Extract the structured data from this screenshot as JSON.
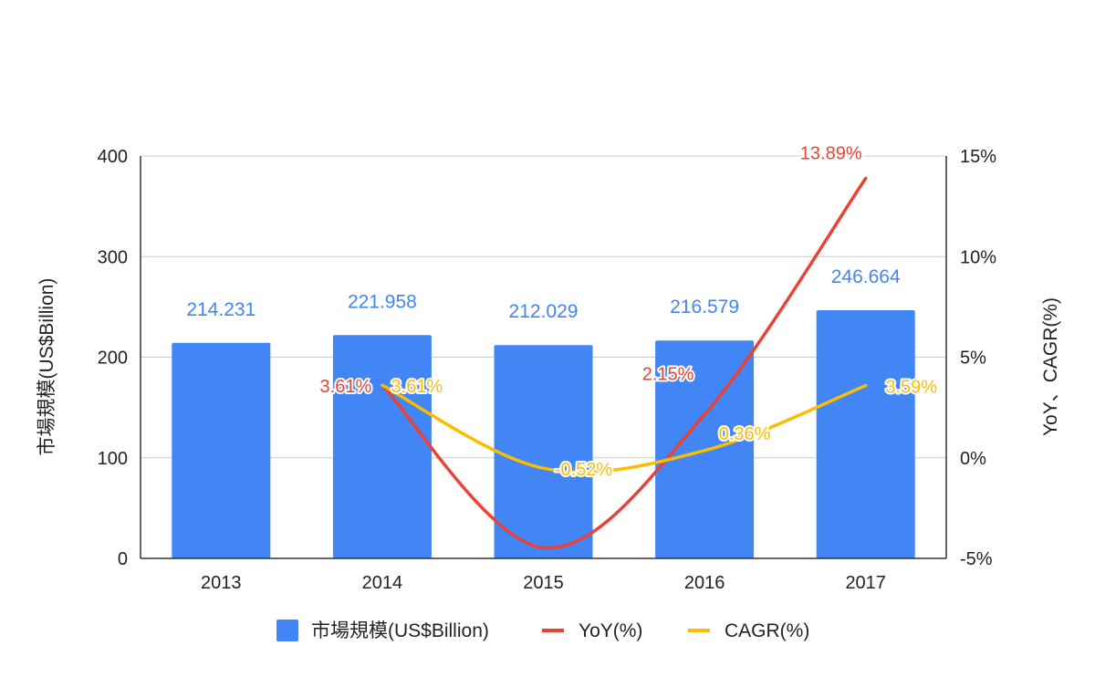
{
  "chart_data": {
    "type": "bar",
    "categories": [
      "2013",
      "2014",
      "2015",
      "2016",
      "2017"
    ],
    "series": [
      {
        "name": "市場規模(US$Billion)",
        "type": "bar",
        "axis": "left",
        "values": [
          214.231,
          221.958,
          212.029,
          216.579,
          246.664
        ],
        "labels": [
          "214.231",
          "221.958",
          "212.029",
          "216.579",
          "246.664"
        ],
        "color": "#4285f4"
      },
      {
        "name": "YoY(%)",
        "type": "line",
        "axis": "right",
        "values": [
          null,
          3.61,
          -4.47,
          2.15,
          13.89
        ],
        "labels": [
          "",
          "3.61%",
          "",
          "2.15%",
          "13.89%"
        ],
        "color": "#ea4335"
      },
      {
        "name": "CAGR(%)",
        "type": "line",
        "axis": "right",
        "values": [
          null,
          3.61,
          -0.52,
          0.36,
          3.59
        ],
        "labels": [
          "",
          "3.61%",
          "-0.52%",
          "0.36%",
          "3.59%"
        ],
        "color": "#fbbc04"
      }
    ],
    "ylabel": "市場規模(US$Billion)",
    "y2label": "YoY、CAGR(%)",
    "ylim": [
      0,
      400
    ],
    "yticks": [
      "0",
      "100",
      "200",
      "300",
      "400"
    ],
    "y2lim": [
      -5,
      15
    ],
    "y2ticks": [
      "-5%",
      "0%",
      "5%",
      "10%",
      "15%"
    ],
    "grid": true,
    "legend": "bottom"
  }
}
